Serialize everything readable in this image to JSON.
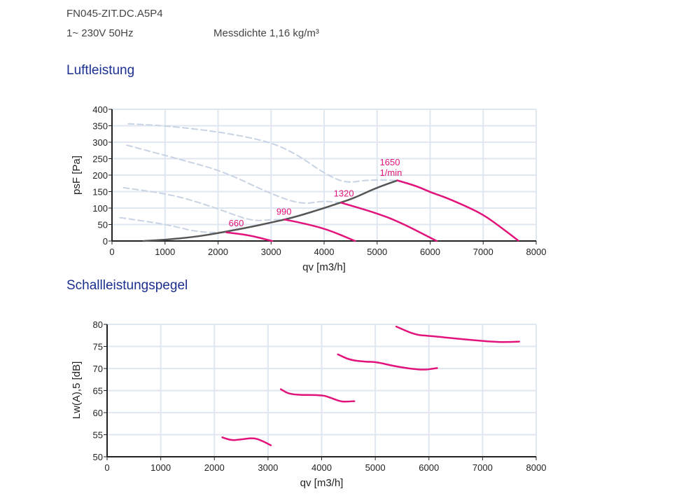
{
  "header": {
    "model": "FN045-ZIT.DC.A5P4",
    "supply": "1~ 230V 50Hz",
    "density": "Messdichte 1,16 kg/m³"
  },
  "sections": {
    "air": "Luftleistung",
    "sound": "Schallleistungspegel"
  },
  "colors": {
    "fan_curve": "#e2137a",
    "system_curve": "#555555",
    "stall_curve": "#c8d4e4",
    "grid": "#dfe7f1",
    "heading": "#1b2f8f"
  },
  "chart_data": [
    {
      "type": "line",
      "title": "Luftleistung",
      "xlabel": "qv [m3/h]",
      "ylabel": "psF [Pa]",
      "xlim": [
        0,
        8000
      ],
      "ylim": [
        0,
        400
      ],
      "xticks": [
        "0",
        "1000",
        "2000",
        "3000",
        "4000",
        "5000",
        "6000",
        "7000",
        "8000"
      ],
      "yticks": [
        "0",
        "50",
        "100",
        "150",
        "200",
        "250",
        "300",
        "350",
        "400"
      ],
      "grid": true,
      "series": [
        {
          "name": "660",
          "label": "660",
          "label_at": [
            2200,
            45
          ],
          "style": "fan",
          "x": [
            2160,
            2577,
            3020
          ],
          "y": [
            26,
            18,
            0
          ]
        },
        {
          "name": "990",
          "label": "990",
          "label_at": [
            3100,
            80
          ],
          "style": "fan",
          "x": [
            3255,
            3516,
            4038,
            4585
          ],
          "y": [
            65,
            57,
            37,
            0
          ]
        },
        {
          "name": "1320",
          "label": "1320",
          "label_at": [
            4180,
            135
          ],
          "style": "fan",
          "x": [
            4324,
            4924,
            5394,
            6124
          ],
          "y": [
            116,
            88,
            60,
            0
          ]
        },
        {
          "name": "1650",
          "label": "1650",
          "label2": "1/min",
          "label_at": [
            5050,
            230
          ],
          "style": "fan",
          "x": [
            5383,
            5759,
            6020,
            6281,
            6698,
            7011,
            7324,
            7663
          ],
          "y": [
            184,
            166,
            147,
            133,
            104,
            79,
            43,
            1
          ]
        },
        {
          "name": "system",
          "style": "system",
          "x": [
            595,
            1000,
            1586,
            2003,
            2629,
            2994,
            3255,
            3516,
            3985,
            4298,
            4559,
            4977,
            5383
          ],
          "y": [
            0,
            3.5,
            13,
            24,
            43,
            56,
            65,
            76,
            99,
            116,
            130,
            161,
            184
          ]
        },
        {
          "name": "stall-1650",
          "style": "stall",
          "x": [
            308,
            1012,
            2055,
            2994,
            3516,
            3985,
            4403,
            4820,
            5383
          ],
          "y": [
            356,
            350,
            331,
            301,
            260,
            207,
            175,
            186,
            184
          ]
        },
        {
          "name": "stall-1320",
          "style": "stall",
          "x": [
            282,
            1325,
            2107,
            2994,
            3568,
            3985,
            4324
          ],
          "y": [
            291,
            246,
            211,
            143,
            111,
            122,
            116
          ]
        },
        {
          "name": "stall-990",
          "style": "stall",
          "x": [
            219,
            1168,
            1951,
            2629,
            2994,
            3255
          ],
          "y": [
            162,
            140,
            101,
            60,
            65,
            65
          ]
        },
        {
          "name": "stall-660",
          "style": "stall",
          "x": [
            151,
            1012,
            1638,
            2160
          ],
          "y": [
            71,
            51,
            26,
            26
          ]
        }
      ]
    },
    {
      "type": "line",
      "title": "Schallleistungspegel",
      "xlabel": "qv [m3/h]",
      "ylabel": "Lw(A),5 [dB]",
      "xlim": [
        0,
        8000
      ],
      "ylim": [
        50,
        80
      ],
      "xticks": [
        "0",
        "1000",
        "2000",
        "3000",
        "4000",
        "5000",
        "6000",
        "7000",
        "8000"
      ],
      "yticks": [
        "50",
        "55",
        "60",
        "65",
        "70",
        "75",
        "80"
      ],
      "grid": true,
      "series": [
        {
          "name": "660",
          "style": "fan",
          "x": [
            2148,
            2313,
            2487,
            2726,
            2878,
            3052
          ],
          "y": [
            54.4,
            53.7,
            53.9,
            54.3,
            53.7,
            52.6
          ]
        },
        {
          "name": "990",
          "style": "fan",
          "x": [
            3239,
            3422,
            4009,
            4161,
            4357,
            4487,
            4609
          ],
          "y": [
            65.3,
            64.0,
            64.0,
            63.4,
            62.5,
            62.5,
            62.6
          ]
        },
        {
          "name": "1320",
          "style": "fan",
          "x": [
            4304,
            4530,
            4835,
            5009,
            5400,
            5878,
            6152
          ],
          "y": [
            73.2,
            71.9,
            71.5,
            71.5,
            70.4,
            69.6,
            70.1
          ]
        },
        {
          "name": "1650",
          "style": "fan",
          "x": [
            5391,
            5748,
            6009,
            6574,
            7226,
            7530,
            7683
          ],
          "y": [
            79.5,
            77.6,
            77.4,
            76.7,
            76.0,
            76.0,
            76.1
          ]
        }
      ]
    }
  ]
}
